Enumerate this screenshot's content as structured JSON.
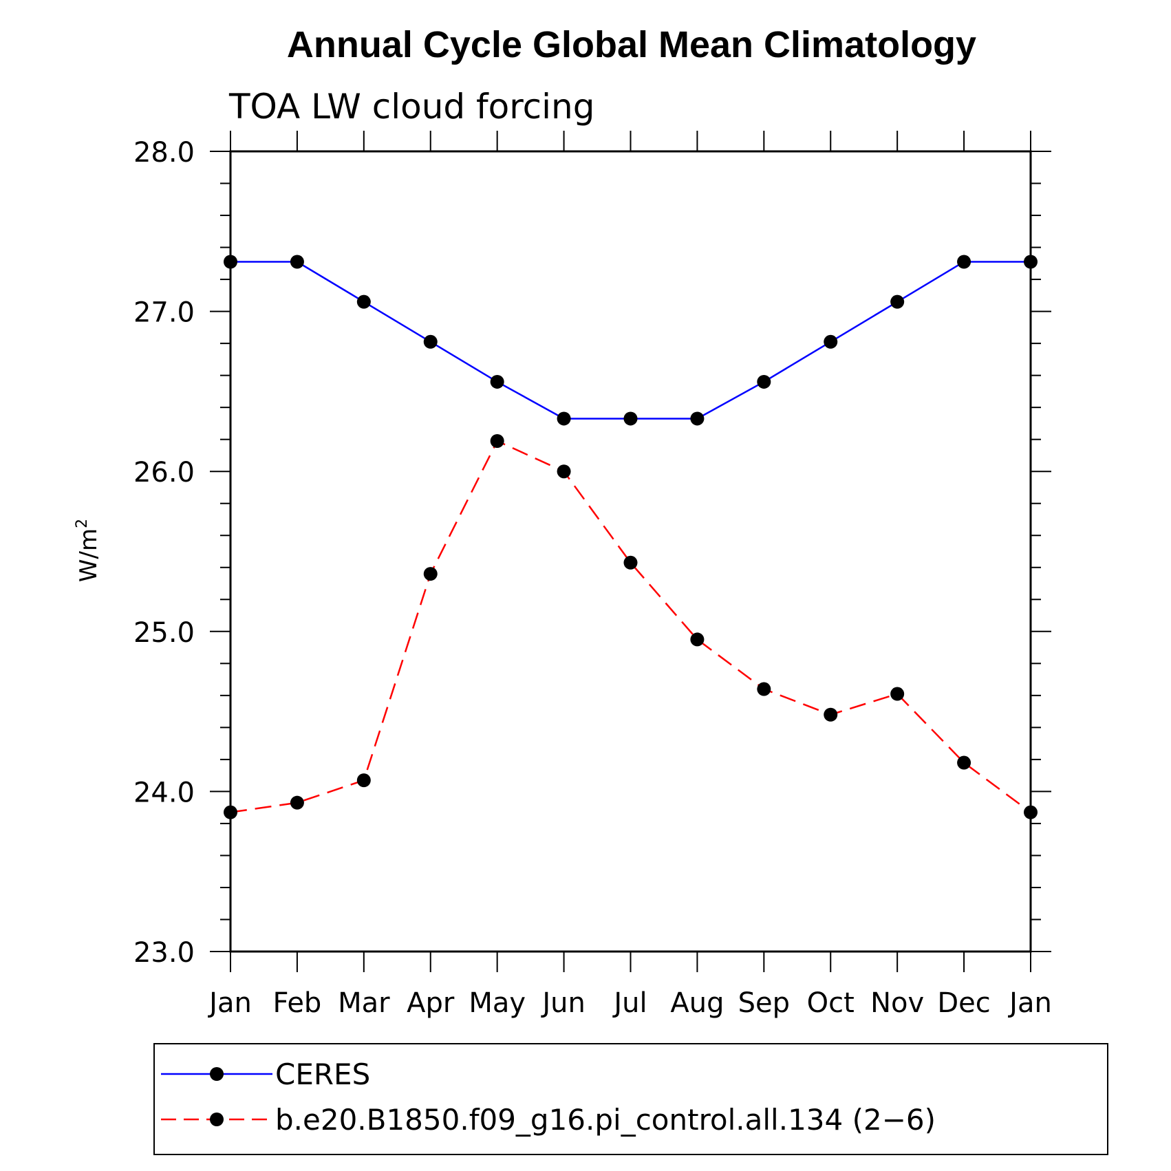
{
  "chart_data": {
    "type": "line",
    "title": "Annual Cycle Global Mean Climatology",
    "subtitle": "TOA LW cloud forcing",
    "xlabel": "",
    "ylabel": "W/m",
    "ylabel_superscript": "2",
    "ylim": [
      23.0,
      28.0
    ],
    "yticks": [
      "23.0",
      "24.0",
      "25.0",
      "26.0",
      "27.0",
      "28.0"
    ],
    "categories": [
      "Jan",
      "Feb",
      "Mar",
      "Apr",
      "May",
      "Jun",
      "Jul",
      "Aug",
      "Sep",
      "Oct",
      "Nov",
      "Dec",
      "Jan"
    ],
    "series": [
      {
        "name": "CERES",
        "color": "#0000ff",
        "dash": "solid",
        "values": [
          27.31,
          27.31,
          27.06,
          26.81,
          26.56,
          26.33,
          26.33,
          26.33,
          26.56,
          26.81,
          27.06,
          27.31,
          27.31
        ]
      },
      {
        "name": "b.e20.B1850.f09_g16.pi_control.all.134 (2−6)",
        "color": "#ff0000",
        "dash": "dashed",
        "values": [
          23.87,
          23.93,
          24.07,
          25.36,
          26.19,
          26.0,
          25.43,
          24.95,
          24.64,
          24.48,
          24.61,
          24.18,
          23.87
        ]
      }
    ],
    "legend_position": "bottom",
    "grid": false
  }
}
